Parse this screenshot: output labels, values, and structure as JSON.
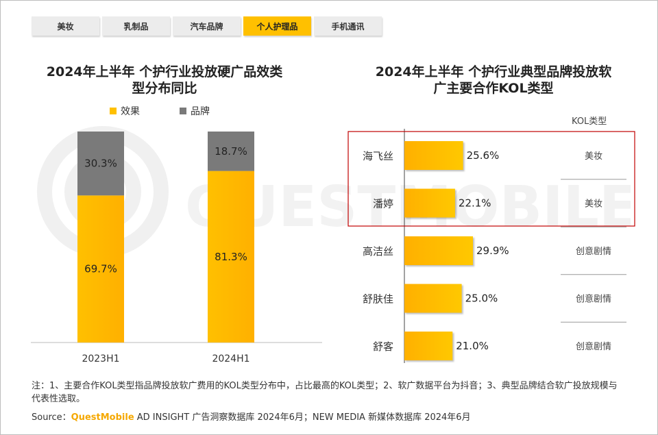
{
  "tabs": [
    {
      "label": "美妆",
      "active": false
    },
    {
      "label": "乳制品",
      "active": false
    },
    {
      "label": "汽车品牌",
      "active": false
    },
    {
      "label": "个人护理品",
      "active": true
    },
    {
      "label": "手机通讯",
      "active": false
    }
  ],
  "colors": {
    "accent": "#ffc000",
    "effect": "#ffc000",
    "brand": "#7a7a7a",
    "highlight_border": "#c00000"
  },
  "left_title_line1": "2024年上半年 个护行业投放硬广品效类",
  "left_title_line2": "型分布同比",
  "right_title_line1": "2024年上半年 个护行业典型品牌投放软",
  "right_title_line2": "广主要合作KOL类型",
  "legend": {
    "effect": "效果",
    "brand": "品牌"
  },
  "kol_header": "KOL类型",
  "chart_data": [
    {
      "type": "bar",
      "stacked": true,
      "categories": [
        "2023H1",
        "2024H1"
      ],
      "series": [
        {
          "name": "效果",
          "values": [
            69.7,
            81.3
          ],
          "labels": [
            "69.7%",
            "81.3%"
          ]
        },
        {
          "name": "品牌",
          "values": [
            30.3,
            18.7
          ],
          "labels": [
            "30.3%",
            "18.7%"
          ]
        }
      ],
      "ylim": [
        0,
        100
      ],
      "grid": false,
      "legend_position": "top"
    },
    {
      "type": "bar",
      "orientation": "horizontal",
      "categories": [
        "海飞丝",
        "潘婷",
        "高洁丝",
        "舒肤佳",
        "舒客"
      ],
      "values": [
        25.6,
        22.1,
        29.9,
        25.0,
        21.0
      ],
      "labels": [
        "25.6%",
        "22.1%",
        "29.9%",
        "25.0%",
        "21.0%"
      ],
      "kol_types": [
        "美妆",
        "美妆",
        "创意剧情",
        "创意剧情",
        "创意剧情"
      ],
      "highlighted": [
        "海飞丝",
        "潘婷"
      ],
      "grid": false
    }
  ],
  "notes": "注：1、主要合作KOL类型指品牌投放软广费用的KOL类型分布中，占比最高的KOL类型；2、软广数据平台为抖音；3、典型品牌结合软广投放规模与代表性选取。",
  "source": {
    "prefix": "Source：",
    "brand": "QuestMobile",
    "rest": " AD INSIGHT 广告洞察数据库 2024年6月；NEW MEDIA 新媒体数据库 2024年6月"
  },
  "watermark": "QUESTMOBILE"
}
